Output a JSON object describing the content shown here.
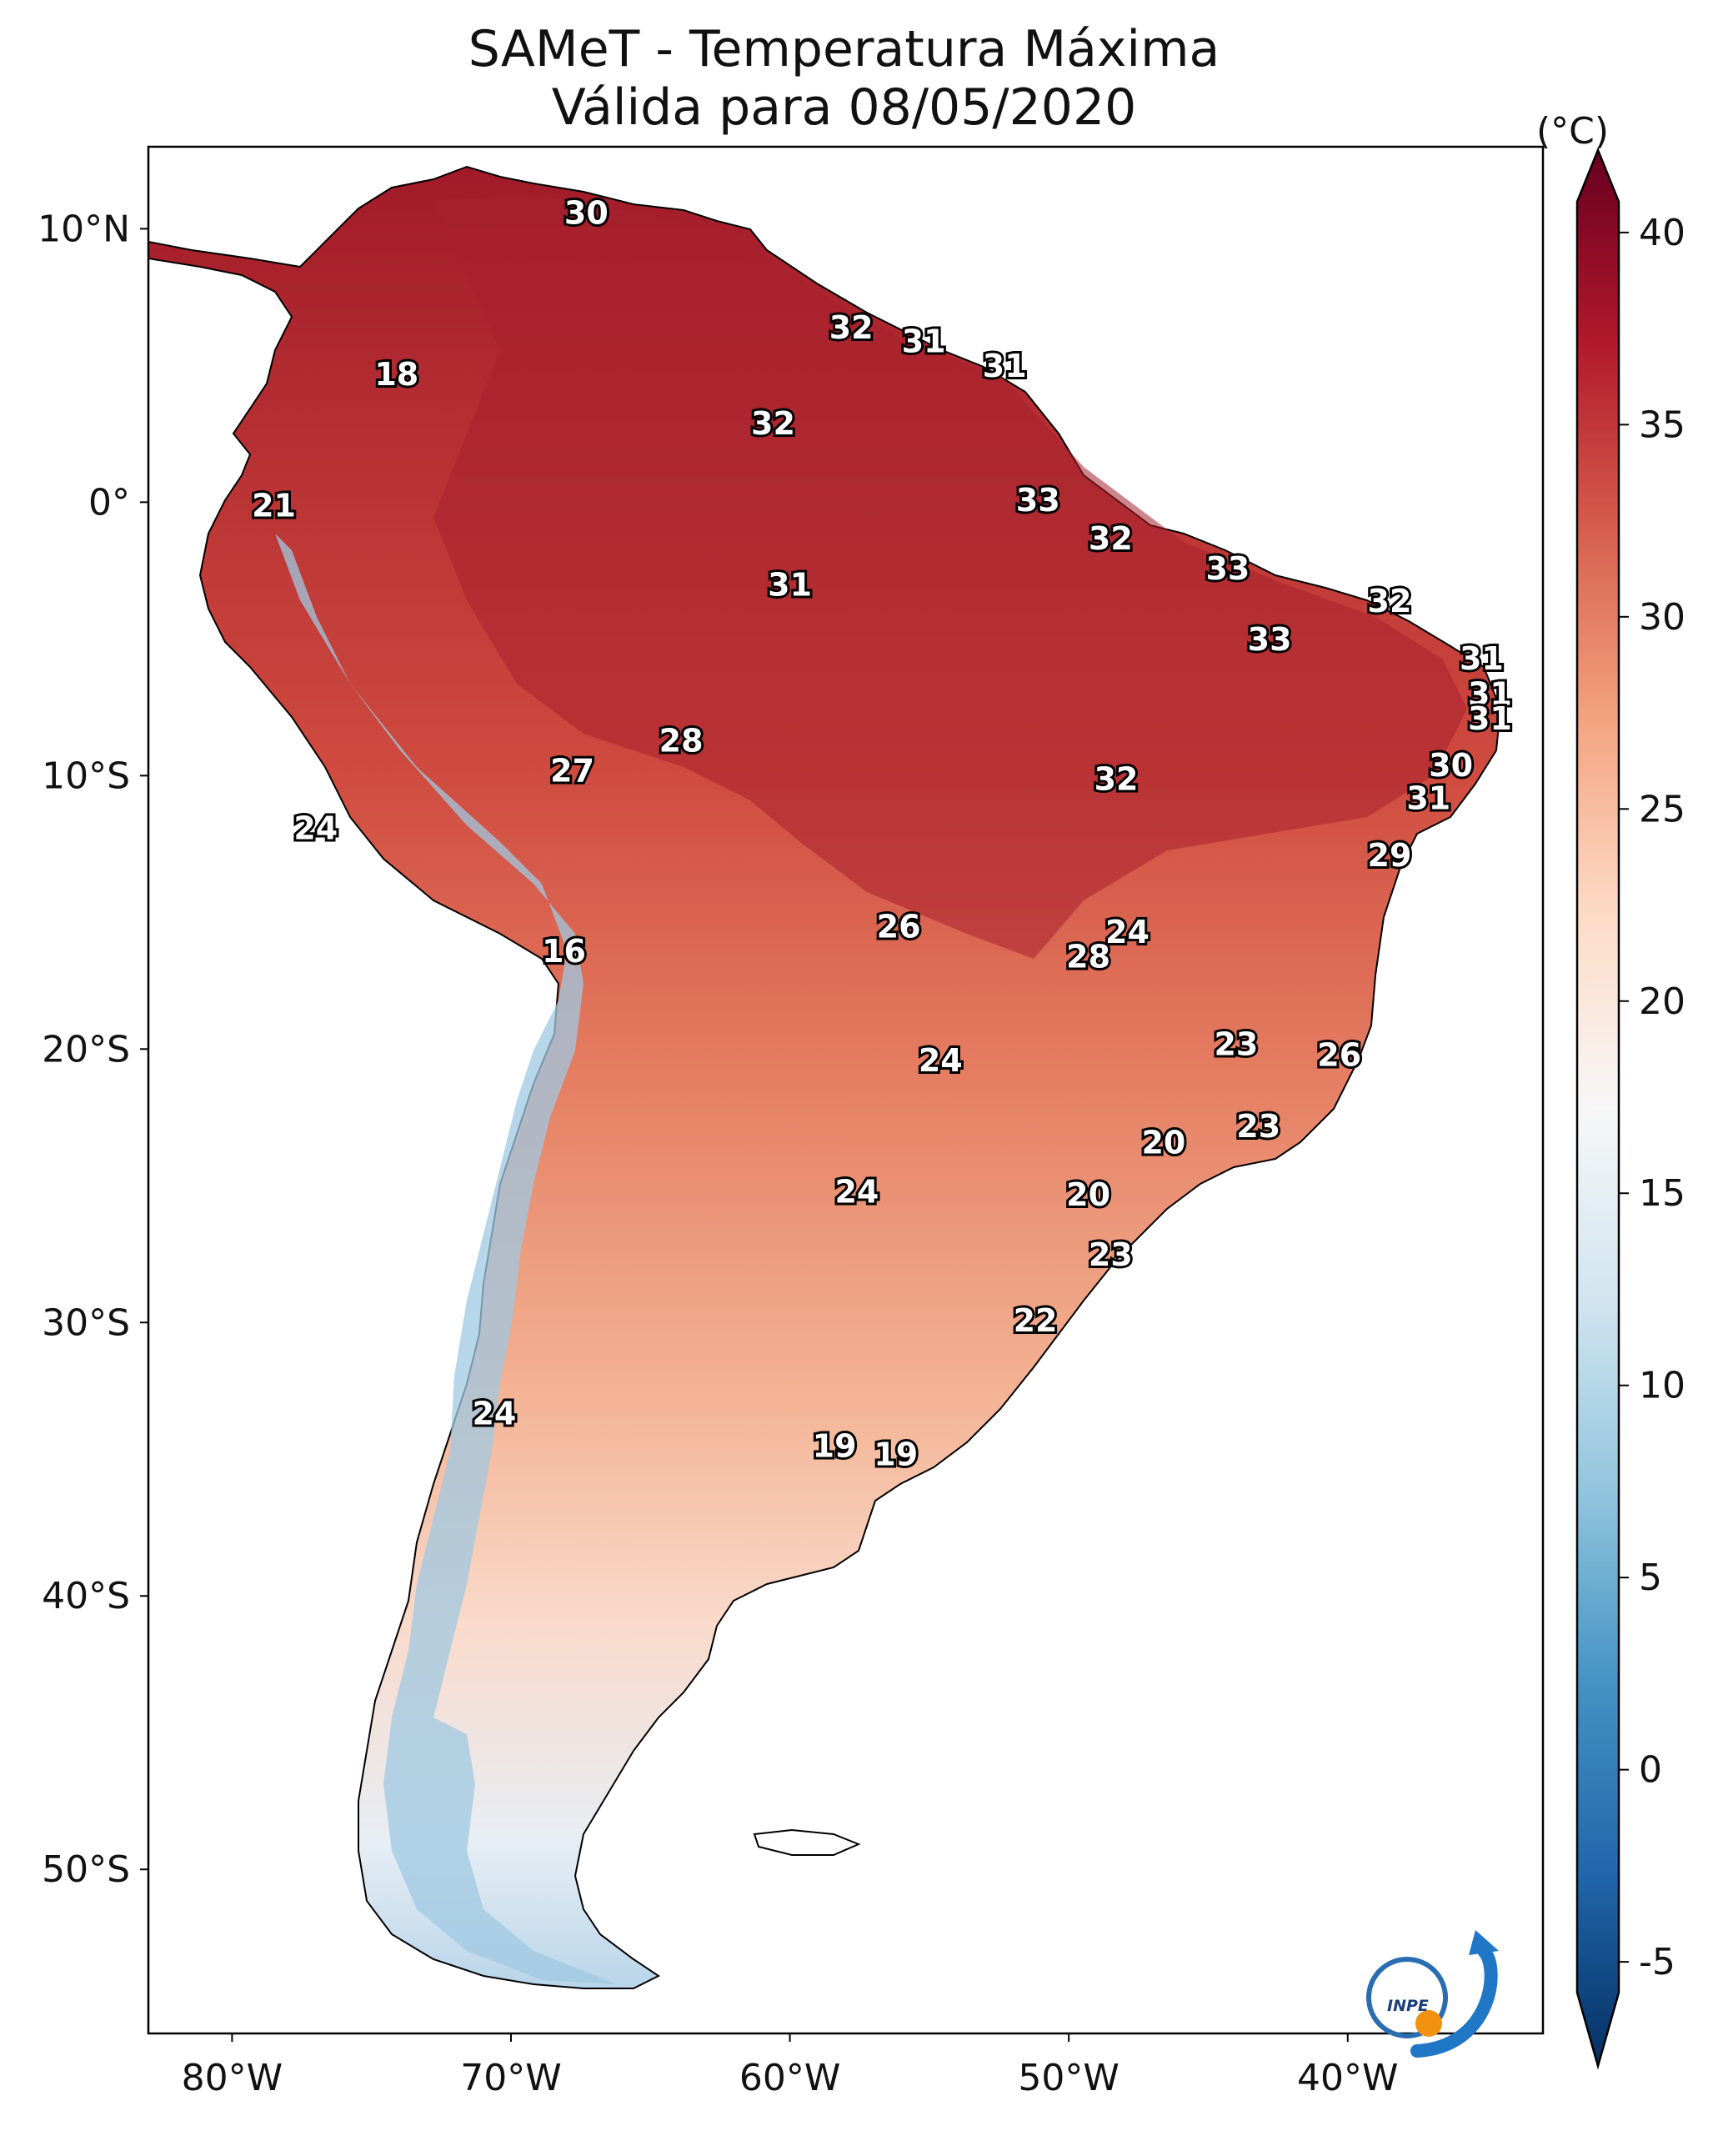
{
  "title": {
    "line1": "SAMeT - Temperatura Máxima",
    "line2": "Válida para 08/05/2020"
  },
  "units": "(°C)",
  "chart_data": {
    "type": "heatmap",
    "map_region": "South America",
    "variable": "Temperatura Máxima",
    "date": "08/05/2020",
    "x_ticks": [
      {
        "lon": -80,
        "label": "80°W"
      },
      {
        "lon": -70,
        "label": "70°W"
      },
      {
        "lon": -60,
        "label": "60°W"
      },
      {
        "lon": -50,
        "label": "50°W"
      },
      {
        "lon": -40,
        "label": "40°W"
      }
    ],
    "y_ticks": [
      {
        "lat": 10,
        "label": "10°N"
      },
      {
        "lat": 0,
        "label": "0°"
      },
      {
        "lat": -10,
        "label": "10°S"
      },
      {
        "lat": -20,
        "label": "20°S"
      },
      {
        "lat": -30,
        "label": "30°S"
      },
      {
        "lat": -40,
        "label": "40°S"
      },
      {
        "lat": -50,
        "label": "50°S"
      }
    ],
    "xlim": [
      -83,
      -33
    ],
    "ylim": [
      -56,
      13
    ],
    "colorbar": {
      "min": -7,
      "max": 42,
      "ticks": [
        {
          "value": 40,
          "label": "40"
        },
        {
          "value": 35,
          "label": "35"
        },
        {
          "value": 30,
          "label": "30"
        },
        {
          "value": 25,
          "label": "25"
        },
        {
          "value": 20,
          "label": "20"
        },
        {
          "value": 15,
          "label": "15"
        },
        {
          "value": 10,
          "label": "10"
        },
        {
          "value": 5,
          "label": "5"
        },
        {
          "value": 0,
          "label": "0"
        },
        {
          "value": -5,
          "label": "-5"
        }
      ],
      "colors": [
        "#053061",
        "#2166ac",
        "#4393c3",
        "#92c5de",
        "#d1e5f0",
        "#f7f7f7",
        "#fddbc7",
        "#f4a582",
        "#d6604d",
        "#b2182b",
        "#67001f"
      ]
    },
    "city_values": [
      {
        "value": 30,
        "lon": -67.3,
        "lat": 10.5
      },
      {
        "value": 32,
        "lon": -57.8,
        "lat": 6.3
      },
      {
        "value": 31,
        "lon": -55.2,
        "lat": 5.8
      },
      {
        "value": 31,
        "lon": -52.3,
        "lat": 4.9
      },
      {
        "value": 32,
        "lon": -60.6,
        "lat": 2.8
      },
      {
        "value": 18,
        "lon": -74.1,
        "lat": 4.6
      },
      {
        "value": 21,
        "lon": -78.5,
        "lat": -0.2
      },
      {
        "value": 33,
        "lon": -51.1,
        "lat": 0.0
      },
      {
        "value": 32,
        "lon": -48.5,
        "lat": -1.4
      },
      {
        "value": 33,
        "lon": -44.3,
        "lat": -2.5
      },
      {
        "value": 31,
        "lon": -60.0,
        "lat": -3.1
      },
      {
        "value": 32,
        "lon": -38.5,
        "lat": -3.7
      },
      {
        "value": 33,
        "lon": -42.8,
        "lat": -5.1
      },
      {
        "value": 31,
        "lon": -35.2,
        "lat": -5.8
      },
      {
        "value": 31,
        "lon": -34.9,
        "lat": -7.1
      },
      {
        "value": 31,
        "lon": -34.9,
        "lat": -8.0
      },
      {
        "value": 28,
        "lon": -63.9,
        "lat": -8.8
      },
      {
        "value": 27,
        "lon": -67.8,
        "lat": -9.9
      },
      {
        "value": 32,
        "lon": -48.3,
        "lat": -10.2
      },
      {
        "value": 30,
        "lon": -36.3,
        "lat": -9.7
      },
      {
        "value": 31,
        "lon": -37.1,
        "lat": -10.9
      },
      {
        "value": 24,
        "lon": -77.0,
        "lat": -12.0
      },
      {
        "value": 29,
        "lon": -38.5,
        "lat": -13.0
      },
      {
        "value": 26,
        "lon": -56.1,
        "lat": -15.6
      },
      {
        "value": 24,
        "lon": -47.9,
        "lat": -15.8
      },
      {
        "value": 16,
        "lon": -68.1,
        "lat": -16.5
      },
      {
        "value": 28,
        "lon": -49.3,
        "lat": -16.7
      },
      {
        "value": 23,
        "lon": -44.0,
        "lat": -19.9
      },
      {
        "value": 26,
        "lon": -40.3,
        "lat": -20.3
      },
      {
        "value": 24,
        "lon": -54.6,
        "lat": -20.5
      },
      {
        "value": 23,
        "lon": -43.2,
        "lat": -22.9
      },
      {
        "value": 20,
        "lon": -46.6,
        "lat": -23.5
      },
      {
        "value": 24,
        "lon": -57.6,
        "lat": -25.3
      },
      {
        "value": 20,
        "lon": -49.3,
        "lat": -25.4
      },
      {
        "value": 23,
        "lon": -48.5,
        "lat": -27.6
      },
      {
        "value": 22,
        "lon": -51.2,
        "lat": -30.0
      },
      {
        "value": 24,
        "lon": -70.6,
        "lat": -33.4
      },
      {
        "value": 19,
        "lon": -58.4,
        "lat": -34.6
      },
      {
        "value": 19,
        "lon": -56.2,
        "lat": -34.9
      }
    ]
  },
  "logo": {
    "text": "INPE"
  }
}
